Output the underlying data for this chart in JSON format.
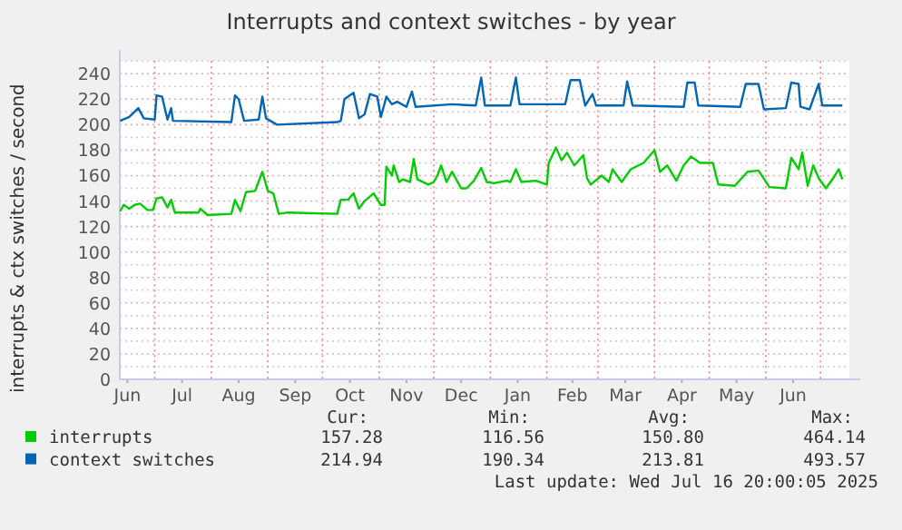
{
  "chart_data": {
    "type": "line",
    "title": "Interrupts and context switches - by year",
    "ylabel": "interrupts & ctx switches / second",
    "xlim": [
      "2024-06-11T20:00",
      "2025-07-16T20:00"
    ],
    "xticks": [
      {
        "value": "2024-06-16",
        "label": "Jun"
      },
      {
        "value": "2024-07-01",
        "label": null
      },
      {
        "value": "2024-07-16",
        "label": "Jul"
      },
      {
        "value": "2024-08-01",
        "label": null
      },
      {
        "value": "2024-08-16",
        "label": "Aug"
      },
      {
        "value": "2024-09-01",
        "label": null
      },
      {
        "value": "2024-09-16",
        "label": "Sep"
      },
      {
        "value": "2024-10-01",
        "label": null
      },
      {
        "value": "2024-10-16",
        "label": "Oct"
      },
      {
        "value": "2024-11-01",
        "label": null
      },
      {
        "value": "2024-11-16",
        "label": "Nov"
      },
      {
        "value": "2024-12-01",
        "label": null
      },
      {
        "value": "2024-12-16",
        "label": "Dec"
      },
      {
        "value": "2025-01-01",
        "label": null
      },
      {
        "value": "2025-01-16",
        "label": "Jan"
      },
      {
        "value": "2025-02-01",
        "label": null
      },
      {
        "value": "2025-02-15",
        "label": "Feb"
      },
      {
        "value": "2025-03-01",
        "label": null
      },
      {
        "value": "2025-03-16",
        "label": "Mar"
      },
      {
        "value": "2025-04-01",
        "label": null
      },
      {
        "value": "2025-04-16",
        "label": "Apr"
      },
      {
        "value": "2025-05-01",
        "label": null
      },
      {
        "value": "2025-05-16",
        "label": "May"
      },
      {
        "value": "2025-06-01",
        "label": null
      },
      {
        "value": "2025-06-16",
        "label": "Jun"
      },
      {
        "value": "2025-07-01",
        "label": null
      }
    ],
    "ylim": [
      0,
      250
    ],
    "yticks": [
      0,
      {
        "value": 10,
        "label": null
      },
      20,
      {
        "value": 30,
        "label": null
      },
      40,
      {
        "value": 50,
        "label": null
      },
      60,
      {
        "value": 70,
        "label": null
      },
      80,
      {
        "value": 90,
        "label": null
      },
      100,
      {
        "value": 110,
        "label": null
      },
      120,
      {
        "value": 130,
        "label": null
      },
      140,
      {
        "value": 150,
        "label": null
      },
      160,
      {
        "value": 170,
        "label": null
      },
      180,
      {
        "value": 190,
        "label": null
      },
      200,
      {
        "value": 210,
        "label": null
      },
      220,
      {
        "value": 230,
        "label": null
      },
      240,
      {
        "value": 250,
        "label": null
      }
    ],
    "grid": true,
    "legend": "bottom",
    "marker": "none",
    "line_style": "solid",
    "series": [
      {
        "name": "interrupts",
        "color": "#00cc00",
        "x": [
          "2024-06-12",
          "2024-06-14",
          "2024-06-17",
          "2024-06-20",
          "2024-06-23",
          "2024-06-27",
          "2024-06-30",
          "2024-07-02",
          "2024-07-05",
          "2024-07-08",
          "2024-07-10",
          "2024-07-12",
          "2024-07-25",
          "2024-07-26",
          "2024-07-30",
          "2024-08-12",
          "2024-08-14",
          "2024-08-17",
          "2024-08-20",
          "2024-08-25",
          "2024-08-29",
          "2024-09-01",
          "2024-09-04",
          "2024-09-07",
          "2024-09-12",
          "2024-10-09",
          "2024-10-11",
          "2024-10-15",
          "2024-10-18",
          "2024-10-21",
          "2024-10-24",
          "2024-10-29",
          "2024-11-02",
          "2024-11-04",
          "2024-11-05",
          "2024-11-08",
          "2024-11-09",
          "2024-11-12",
          "2024-11-14",
          "2024-11-18",
          "2024-11-20",
          "2024-11-22",
          "2024-11-28",
          "2024-12-01",
          "2024-12-03",
          "2024-12-05",
          "2024-12-08",
          "2024-12-11",
          "2024-12-16",
          "2024-12-19",
          "2024-12-23",
          "2024-12-27",
          "2024-12-30",
          "2025-01-03",
          "2025-01-10",
          "2025-01-12",
          "2025-01-15",
          "2025-01-18",
          "2025-01-26",
          "2025-02-01",
          "2025-02-02",
          "2025-02-06",
          "2025-02-09",
          "2025-02-12",
          "2025-02-16",
          "2025-02-21",
          "2025-02-23",
          "2025-02-25",
          "2025-03-03",
          "2025-03-07",
          "2025-03-09",
          "2025-03-14",
          "2025-03-19",
          "2025-03-26",
          "2025-04-01",
          "2025-04-04",
          "2025-04-08",
          "2025-04-13",
          "2025-04-17",
          "2025-04-21",
          "2025-04-26",
          "2025-05-03",
          "2025-05-06",
          "2025-05-15",
          "2025-05-22",
          "2025-05-28",
          "2025-06-03",
          "2025-06-12",
          "2025-06-15",
          "2025-06-19",
          "2025-06-21",
          "2025-06-24",
          "2025-06-27",
          "2025-06-30",
          "2025-07-04",
          "2025-07-08",
          "2025-07-11",
          "2025-07-13"
        ],
        "values": [
          132,
          137,
          134,
          137,
          138,
          133,
          133,
          142,
          143,
          135,
          141,
          131,
          131,
          134,
          129,
          130,
          141,
          132,
          147,
          148,
          163,
          148,
          146,
          130,
          131,
          130,
          141,
          141,
          146,
          134,
          140,
          146,
          137,
          137,
          167,
          160,
          168,
          155,
          157,
          155,
          173,
          157,
          153,
          155,
          160,
          168,
          155,
          163,
          150,
          150,
          156,
          166,
          155,
          154,
          156,
          155,
          165,
          155,
          156,
          153,
          170,
          182,
          172,
          178,
          168,
          176,
          158,
          153,
          160,
          155,
          165,
          155,
          165,
          170,
          180,
          163,
          168,
          156,
          168,
          175,
          170,
          170,
          153,
          152,
          163,
          164,
          151,
          150,
          174,
          165,
          178,
          152,
          168,
          158,
          150,
          158,
          165,
          157
        ]
      },
      {
        "name": "context switches",
        "color": "#0066b3",
        "x": [
          "2024-06-12",
          "2024-06-17",
          "2024-06-22",
          "2024-06-25",
          "2024-07-01",
          "2024-07-02",
          "2024-07-05",
          "2024-07-08",
          "2024-07-10",
          "2024-07-11",
          "2024-08-12",
          "2024-08-14",
          "2024-08-16",
          "2024-08-19",
          "2024-08-27",
          "2024-08-29",
          "2024-08-31",
          "2024-09-06",
          "2024-10-09",
          "2024-10-11",
          "2024-10-13",
          "2024-10-18",
          "2024-10-21",
          "2024-10-24",
          "2024-10-27",
          "2024-10-31",
          "2024-11-02",
          "2024-11-05",
          "2024-11-08",
          "2024-11-11",
          "2024-11-16",
          "2024-11-19",
          "2024-11-21",
          "2024-12-11",
          "2024-12-24",
          "2024-12-27",
          "2024-12-29",
          "2025-01-12",
          "2025-01-15",
          "2025-01-17",
          "2025-02-11",
          "2025-02-14",
          "2025-02-19",
          "2025-02-22",
          "2025-02-26",
          "2025-02-28",
          "2025-03-15",
          "2025-03-17",
          "2025-03-20",
          "2025-04-17",
          "2025-04-19",
          "2025-04-23",
          "2025-04-25",
          "2025-05-18",
          "2025-05-21",
          "2025-05-28",
          "2025-05-31",
          "2025-06-12",
          "2025-06-15",
          "2025-06-19",
          "2025-06-20",
          "2025-06-25",
          "2025-06-30",
          "2025-07-02",
          "2025-07-13"
        ],
        "values": [
          203,
          206,
          213,
          205,
          204,
          223,
          222,
          204,
          213,
          203,
          202,
          223,
          220,
          203,
          204,
          222,
          205,
          200,
          202,
          203,
          220,
          225,
          205,
          208,
          224,
          222,
          206,
          222,
          216,
          218,
          214,
          226,
          214,
          216,
          215,
          237,
          215,
          215,
          237,
          216,
          216,
          235,
          235,
          215,
          224,
          215,
          215,
          234,
          215,
          214,
          233,
          233,
          215,
          214,
          232,
          232,
          212,
          213,
          233,
          232,
          214,
          212,
          232,
          215,
          215
        ]
      }
    ],
    "annotations": [
      "Cur:",
      "Min:",
      "Avg:",
      "Max:",
      "157.28",
      "116.56",
      "150.80",
      "464.14",
      "214.94",
      "190.34",
      "213.81",
      "493.57",
      "Last update: Wed Jul 16 20:00:05 2025"
    ]
  }
}
